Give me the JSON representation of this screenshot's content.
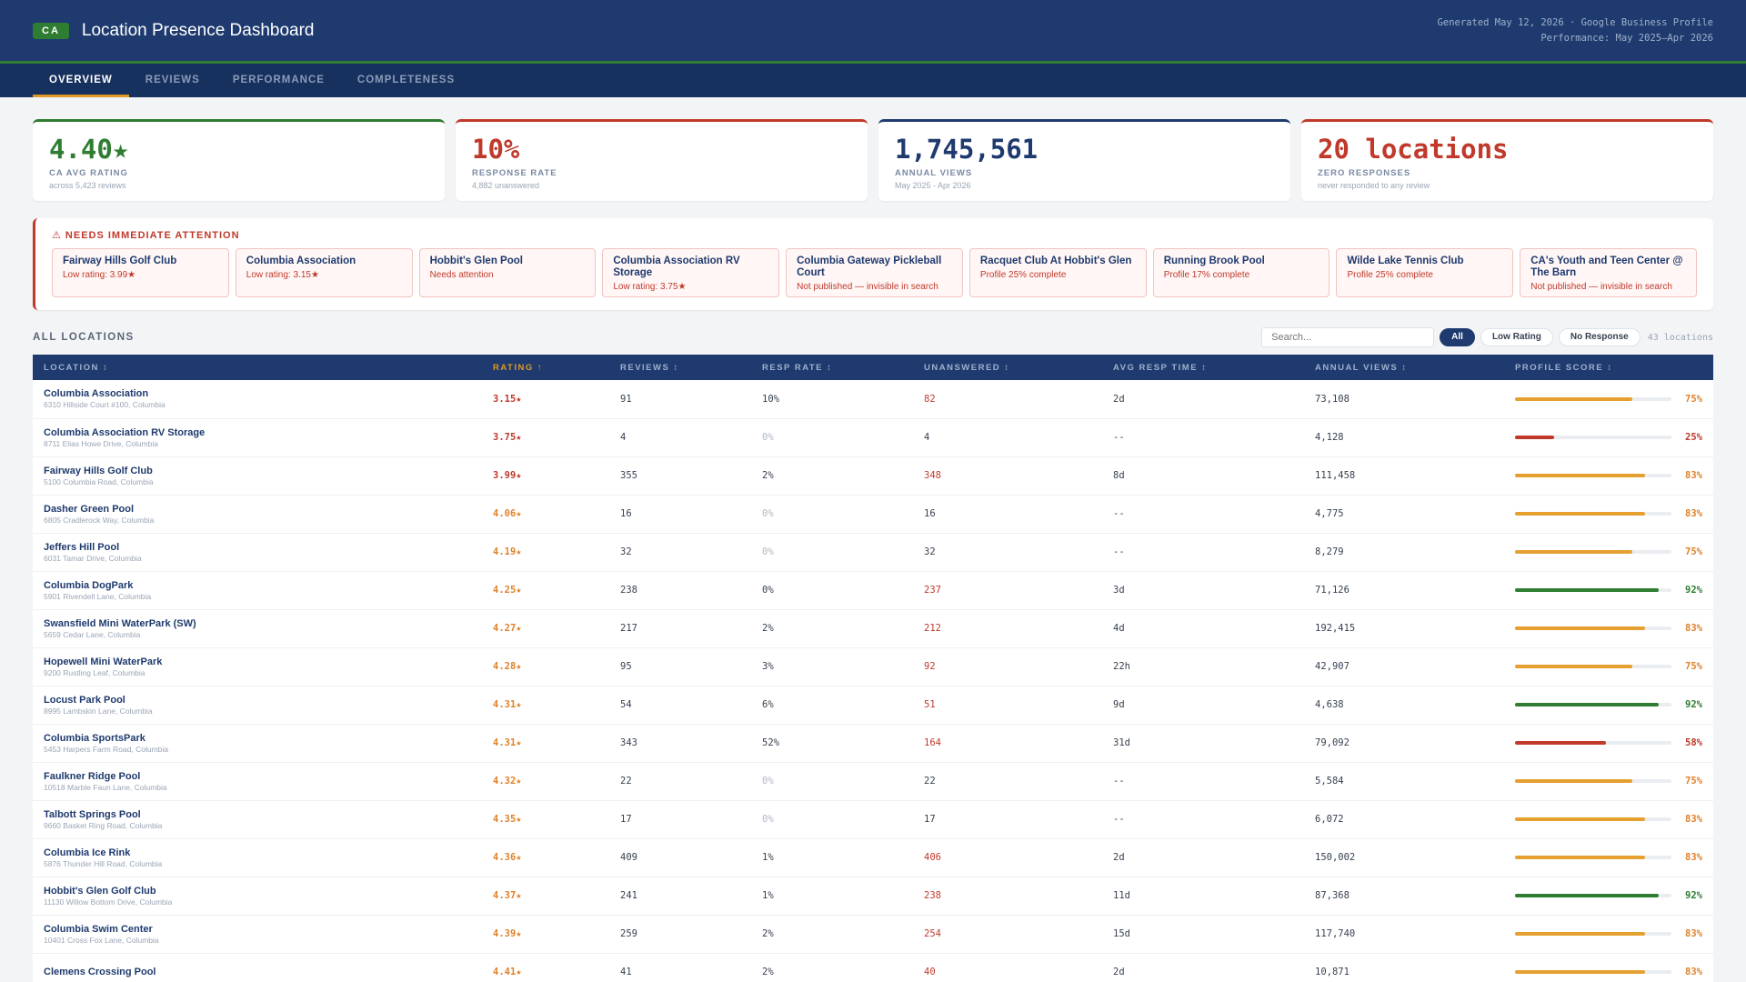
{
  "header": {
    "badge": "CA",
    "title": "Location Presence Dashboard",
    "meta_line1": "Generated May 12, 2026 · Google Business Profile",
    "meta_line2": "Performance: May 2025–Apr 2026"
  },
  "tabs": [
    "OVERVIEW",
    "REVIEWS",
    "PERFORMANCE",
    "COMPLETENESS"
  ],
  "kpis": [
    {
      "value": "4.40★",
      "label": "CA AVG RATING",
      "sub": "across 5,423 reviews",
      "color": "#2f7d32"
    },
    {
      "value": "10%",
      "label": "RESPONSE RATE",
      "sub": "4,882 unanswered",
      "color": "#c0392b"
    },
    {
      "value": "1,745,561",
      "label": "ANNUAL VIEWS",
      "sub": "May 2025 - Apr 2026",
      "color": "#1e3a6e"
    },
    {
      "value": "20 locations",
      "label": "ZERO RESPONSES",
      "sub": "never responded to any review",
      "color": "#c0392b"
    }
  ],
  "attention": {
    "title": "⚠ NEEDS IMMEDIATE ATTENTION",
    "items": [
      {
        "name": "Fairway Hills Golf Club",
        "detail": "Low rating: 3.99★"
      },
      {
        "name": "Columbia Association",
        "detail": "Low rating: 3.15★"
      },
      {
        "name": "Hobbit's Glen Pool",
        "detail": "Needs attention"
      },
      {
        "name": "Columbia Association RV Storage",
        "detail": "Low rating: 3.75★"
      },
      {
        "name": "Columbia Gateway Pickleball Court",
        "detail": "Not published — invisible in search"
      },
      {
        "name": "Racquet Club At Hobbit's Glen",
        "detail": "Profile 25% complete"
      },
      {
        "name": "Running Brook Pool",
        "detail": "Profile 17% complete"
      },
      {
        "name": "Wilde Lake Tennis Club",
        "detail": "Profile 25% complete"
      },
      {
        "name": "CA's Youth and Teen Center @ The Barn",
        "detail": "Not published — invisible in search"
      }
    ]
  },
  "list": {
    "title": "ALL LOCATIONS",
    "search_placeholder": "Search...",
    "filters": [
      "All",
      "Low Rating",
      "No Response"
    ],
    "count": "43 locations"
  },
  "columns": [
    "LOCATION ↕",
    "RATING ↑",
    "REVIEWS ↕",
    "RESP RATE ↕",
    "UNANSWERED ↕",
    "AVG RESP TIME ↕",
    "ANNUAL VIEWS ↕",
    "PROFILE SCORE ↕"
  ],
  "colors": {
    "good": "#2f7d32",
    "warn": "#e5a030",
    "bad": "#c0392b"
  },
  "rows": [
    {
      "name": "Columbia Association",
      "addr": "6310 Hillside Court #100, Columbia",
      "rating": "3.15★",
      "reviews": "91",
      "resp": "10%",
      "unanswered": "82",
      "time": "2d",
      "views": "73,108",
      "score": 75
    },
    {
      "name": "Columbia Association RV Storage",
      "addr": "8711 Elias Howe Drive, Columbia",
      "rating": "3.75★",
      "reviews": "4",
      "resp": "0%",
      "unanswered": "4",
      "time": "--",
      "views": "4,128",
      "score": 25
    },
    {
      "name": "Fairway Hills Golf Club",
      "addr": "5100 Columbia Road, Columbia",
      "rating": "3.99★",
      "reviews": "355",
      "resp": "2%",
      "unanswered": "348",
      "time": "8d",
      "views": "111,458",
      "score": 83
    },
    {
      "name": "Dasher Green Pool",
      "addr": "6805 Cradlerock Way, Columbia",
      "rating": "4.06★",
      "reviews": "16",
      "resp": "0%",
      "unanswered": "16",
      "time": "--",
      "views": "4,775",
      "score": 83
    },
    {
      "name": "Jeffers Hill Pool",
      "addr": "6031 Tamar Drive, Columbia",
      "rating": "4.19★",
      "reviews": "32",
      "resp": "0%",
      "unanswered": "32",
      "time": "--",
      "views": "8,279",
      "score": 75
    },
    {
      "name": "Columbia DogPark",
      "addr": "5901 Rivendell Lane, Columbia",
      "rating": "4.25★",
      "reviews": "238",
      "resp": "0%",
      "unanswered": "237",
      "time": "3d",
      "views": "71,126",
      "score": 92
    },
    {
      "name": "Swansfield Mini WaterPark (SW)",
      "addr": "5659 Cedar Lane, Columbia",
      "rating": "4.27★",
      "reviews": "217",
      "resp": "2%",
      "unanswered": "212",
      "time": "4d",
      "views": "192,415",
      "score": 83
    },
    {
      "name": "Hopewell Mini WaterPark",
      "addr": "9200 Rustling Leaf, Columbia",
      "rating": "4.28★",
      "reviews": "95",
      "resp": "3%",
      "unanswered": "92",
      "time": "22h",
      "views": "42,907",
      "score": 75
    },
    {
      "name": "Locust Park Pool",
      "addr": "8995 Lambskin Lane, Columbia",
      "rating": "4.31★",
      "reviews": "54",
      "resp": "6%",
      "unanswered": "51",
      "time": "9d",
      "views": "4,638",
      "score": 92
    },
    {
      "name": "Columbia SportsPark",
      "addr": "5453 Harpers Farm Road, Columbia",
      "rating": "4.31★",
      "reviews": "343",
      "resp": "52%",
      "unanswered": "164",
      "time": "31d",
      "views": "79,092",
      "score": 58
    },
    {
      "name": "Faulkner Ridge Pool",
      "addr": "10518 Marble Faun Lane, Columbia",
      "rating": "4.32★",
      "reviews": "22",
      "resp": "0%",
      "unanswered": "22",
      "time": "--",
      "views": "5,584",
      "score": 75
    },
    {
      "name": "Talbott Springs Pool",
      "addr": "9660 Basket Ring Road, Columbia",
      "rating": "4.35★",
      "reviews": "17",
      "resp": "0%",
      "unanswered": "17",
      "time": "--",
      "views": "6,072",
      "score": 83
    },
    {
      "name": "Columbia Ice Rink",
      "addr": "5876 Thunder Hill Road, Columbia",
      "rating": "4.36★",
      "reviews": "409",
      "resp": "1%",
      "unanswered": "406",
      "time": "2d",
      "views": "150,002",
      "score": 83
    },
    {
      "name": "Hobbit's Glen Golf Club",
      "addr": "11130 Willow Bottom Drive, Columbia",
      "rating": "4.37★",
      "reviews": "241",
      "resp": "1%",
      "unanswered": "238",
      "time": "11d",
      "views": "87,368",
      "score": 92
    },
    {
      "name": "Columbia Swim Center",
      "addr": "10401 Cross Fox Lane, Columbia",
      "rating": "4.39★",
      "reviews": "259",
      "resp": "2%",
      "unanswered": "254",
      "time": "15d",
      "views": "117,740",
      "score": 83
    },
    {
      "name": "Clemens Crossing Pool",
      "addr": "",
      "rating": "4.41★",
      "reviews": "41",
      "resp": "2%",
      "unanswered": "40",
      "time": "2d",
      "views": "10,871",
      "score": 83
    }
  ]
}
